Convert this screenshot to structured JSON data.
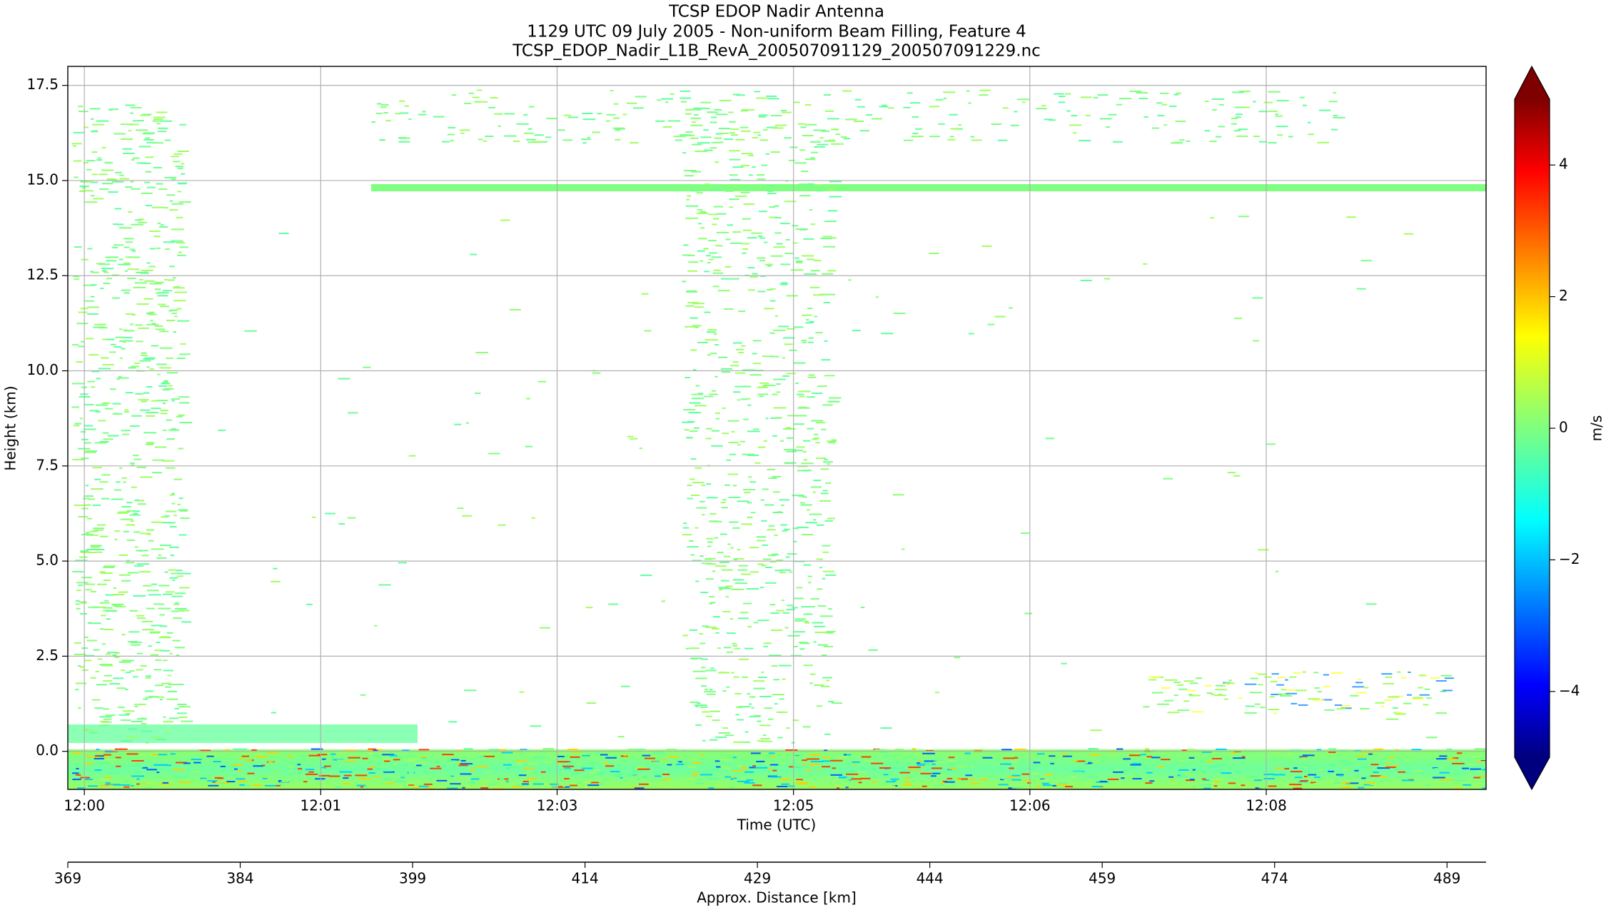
{
  "chart_data": {
    "type": "curtain",
    "title": "TCSP EDOP Nadir Antenna",
    "subtitle": "1129 UTC 09 July 2005 - Non-uniform Beam Filling, Feature 4",
    "filename": "TCSP_EDOP_Nadir_L1B_RevA_200507091129_200507091229.nc",
    "xlabel": "Time (UTC)",
    "ylabel": "Height (km)",
    "xlim": [
      -0.07,
      5.93
    ],
    "xticks": [
      {
        "value": 0,
        "label": "12:00"
      },
      {
        "value": 1,
        "label": "12:01"
      },
      {
        "value": 2,
        "label": "12:03"
      },
      {
        "value": 3,
        "label": "12:05"
      },
      {
        "value": 4,
        "label": "12:06"
      },
      {
        "value": 5,
        "label": "12:08"
      }
    ],
    "ylim": [
      -1,
      18
    ],
    "yticks": [
      {
        "value": 0,
        "label": "0.0"
      },
      {
        "value": 2.5,
        "label": "2.5"
      },
      {
        "value": 5,
        "label": "5.0"
      },
      {
        "value": 7.5,
        "label": "7.5"
      },
      {
        "value": 10,
        "label": "10.0"
      },
      {
        "value": 12.5,
        "label": "12.5"
      },
      {
        "value": 15,
        "label": "15.0"
      },
      {
        "value": 17.5,
        "label": "17.5"
      }
    ],
    "grid": true,
    "x2label": "Approx. Distance [km]",
    "x2lim": [
      369,
      492.4
    ],
    "x2ticks": [
      369,
      384,
      399,
      414,
      429,
      444,
      459,
      474,
      489
    ],
    "colorbar": {
      "label": "m/s",
      "colormap": "jet",
      "clim": [
        -5,
        5
      ],
      "extend": "both",
      "ticks": [
        {
          "value": -4,
          "label": "−4"
        },
        {
          "value": -2,
          "label": "−2"
        },
        {
          "value": 0,
          "label": "0"
        },
        {
          "value": 2,
          "label": "2"
        },
        {
          "value": 4,
          "label": "4"
        }
      ]
    }
  }
}
